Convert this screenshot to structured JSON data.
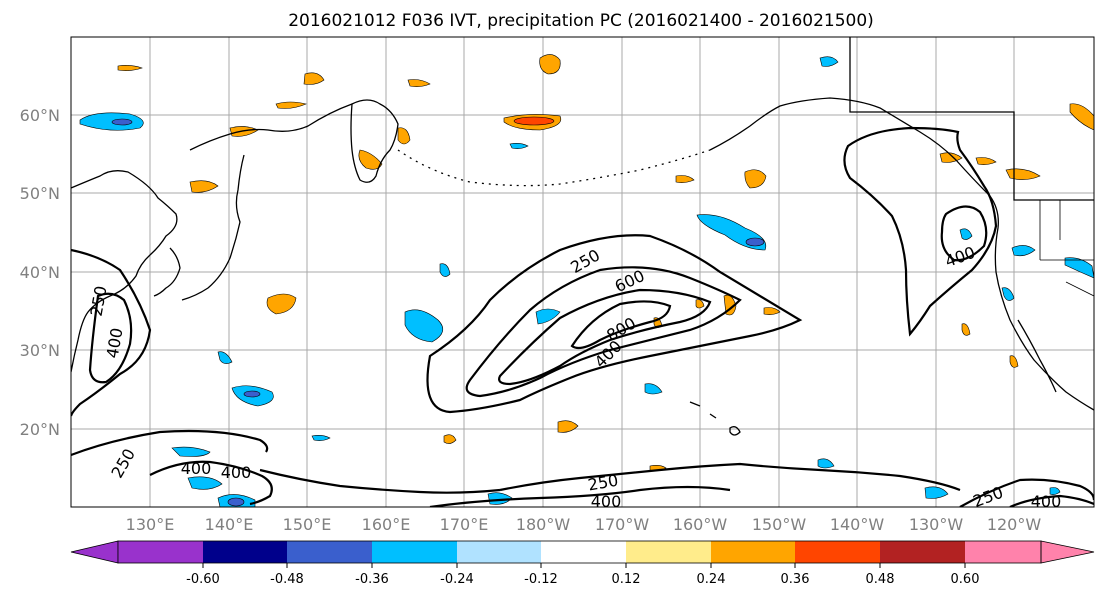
{
  "title": "2016021012 F036 IVT, precipitation PC (2016021400 - 2016021500)",
  "map": {
    "lon_labels": [
      "130°E",
      "140°E",
      "150°E",
      "160°E",
      "170°E",
      "180°W",
      "170°W",
      "160°W",
      "150°W",
      "140°W",
      "130°W",
      "120°W"
    ],
    "lat_labels": [
      "60°N",
      "50°N",
      "40°N",
      "30°N",
      "20°N"
    ],
    "contour_levels": [
      250,
      400,
      600,
      800
    ],
    "contour_label_texts": [
      "250",
      "600",
      "800",
      "400",
      "250",
      "400",
      "400",
      "250",
      "400",
      "250",
      "400",
      "250",
      "400"
    ]
  },
  "colorbar": {
    "colors": [
      "#9932cc",
      "#00008b",
      "#3a5fcd",
      "#00bfff",
      "#b0e2ff",
      "#ffffff",
      "#ffec8b",
      "#ffa500",
      "#ff4500",
      "#b22222",
      "#ff82ab"
    ],
    "tick_labels": [
      "-0.60",
      "-0.48",
      "-0.36",
      "-0.24",
      "-0.12",
      "0.12",
      "0.24",
      "0.36",
      "0.48",
      "0.60"
    ]
  },
  "colors": {
    "neg_light": "#00bfff",
    "neg_dark": "#3a5fcd",
    "pos_light": "#ffa500",
    "pos_strong": "#ff4500",
    "pos_pale": "#ffec8b",
    "grid": "#a9a9a9",
    "coast": "#000000"
  }
}
